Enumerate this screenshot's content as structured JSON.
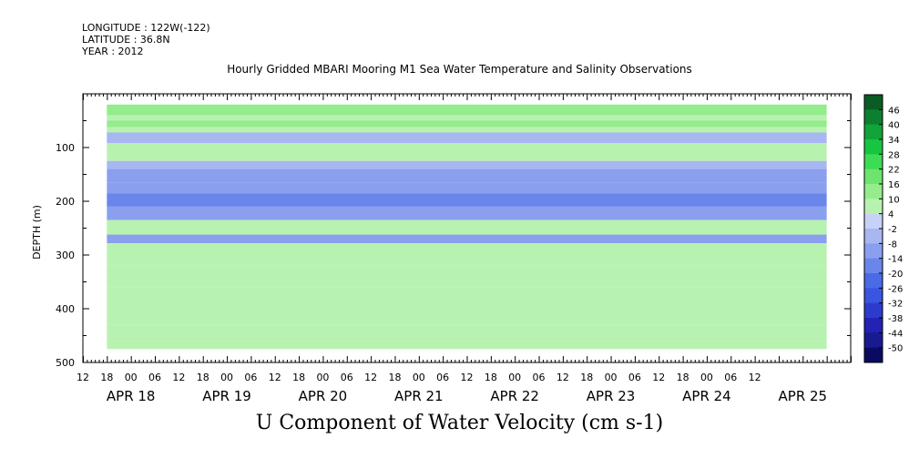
{
  "header": {
    "longitude": "LONGITUDE : 122W(-122)",
    "latitude": "LATITUDE : 36.8N",
    "year": "YEAR : 2012"
  },
  "chart_data": {
    "type": "heatmap",
    "title": "Hourly Gridded MBARI Mooring M1 Sea Water Temperature and Salinity Observations",
    "xlabel": "U Component of Water Velocity (cm s-1)",
    "ylabel": "DEPTH (m)",
    "x_unit": "hours since APR 18 00:00",
    "xlim": [
      -12,
      180
    ],
    "ylim": [
      500,
      0
    ],
    "y_inverted": true,
    "y_ticks": [
      100,
      200,
      300,
      400,
      500
    ],
    "x_hour_ticks": [
      "12",
      "18",
      "00",
      "06",
      "12",
      "18",
      "00",
      "06",
      "12",
      "18",
      "00",
      "06",
      "12",
      "18",
      "00",
      "06",
      "12",
      "18",
      "00",
      "06",
      "12",
      "18",
      "00",
      "06",
      "12",
      "18",
      "00",
      "06",
      "12"
    ],
    "x_day_labels": [
      "APR 18",
      "APR 19",
      "APR 20",
      "APR 21",
      "APR 22",
      "APR 23",
      "APR 24",
      "APR 25"
    ],
    "data_time_range": [
      -6,
      174
    ],
    "depth_bands": [
      {
        "top": 20,
        "bottom": 40,
        "value": 12
      },
      {
        "top": 40,
        "bottom": 50,
        "value": 6
      },
      {
        "top": 50,
        "bottom": 62,
        "value": 10
      },
      {
        "top": 62,
        "bottom": 72,
        "value": 4
      },
      {
        "top": 72,
        "bottom": 92,
        "value": -8
      },
      {
        "top": 92,
        "bottom": 125,
        "value": 4
      },
      {
        "top": 125,
        "bottom": 140,
        "value": -6
      },
      {
        "top": 140,
        "bottom": 165,
        "value": -10
      },
      {
        "top": 165,
        "bottom": 185,
        "value": -14
      },
      {
        "top": 185,
        "bottom": 210,
        "value": -20
      },
      {
        "top": 210,
        "bottom": 235,
        "value": -10
      },
      {
        "top": 235,
        "bottom": 262,
        "value": 8
      },
      {
        "top": 262,
        "bottom": 278,
        "value": -14
      },
      {
        "top": 278,
        "bottom": 320,
        "value": 8
      },
      {
        "top": 320,
        "bottom": 360,
        "value": 6
      },
      {
        "top": 360,
        "bottom": 400,
        "value": 8
      },
      {
        "top": 400,
        "bottom": 430,
        "value": 4
      },
      {
        "top": 430,
        "bottom": 460,
        "value": 6
      },
      {
        "top": 460,
        "bottom": 475,
        "value": 4
      }
    ],
    "colorbar": {
      "levels": [
        -50,
        -44,
        -38,
        -32,
        -26,
        -20,
        -14,
        -8,
        -2,
        4,
        10,
        16,
        22,
        28,
        34,
        40,
        46
      ],
      "labels": [
        "46",
        "40",
        "34",
        "28",
        "22",
        "16",
        "10",
        "4",
        "-2",
        "-8",
        "-14",
        "-20",
        "-26",
        "-32",
        "-38",
        "-44",
        "-50"
      ],
      "colors_low_to_high": [
        "#0a0a60",
        "#1a1a90",
        "#2222b4",
        "#2b3ccc",
        "#3a55e0",
        "#4a6ae6",
        "#6a86ea",
        "#8aa0ee",
        "#a8b6f2",
        "#c8d2f8",
        "#b8f2b0",
        "#94ec8c",
        "#6ee46e",
        "#3cdc54",
        "#16c640",
        "#10a43a",
        "#0c8030",
        "#0a5c24"
      ]
    }
  }
}
